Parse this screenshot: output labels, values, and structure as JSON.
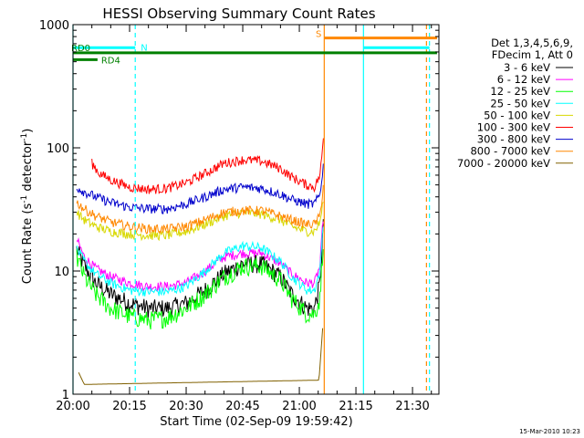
{
  "chart_data": {
    "type": "line",
    "title": "HESSI Observing Summary Count Rates",
    "xlabel": "Start Time (02-Sep-09 19:59:42)",
    "ylabel_main": "Count Rate (s",
    "ylabel_sup1": "-1",
    "ylabel_mid": " detector",
    "ylabel_sup2": "-1",
    "ylabel_end": ")",
    "y_scale": "log",
    "ylim": [
      1,
      1000
    ],
    "xlim_minutes": [
      0,
      97
    ],
    "x_ticks": [
      {
        "minute": 0,
        "label": "20:00"
      },
      {
        "minute": 15,
        "label": "20:15"
      },
      {
        "minute": 30,
        "label": "20:30"
      },
      {
        "minute": 45,
        "label": "20:45"
      },
      {
        "minute": 60,
        "label": "21:00"
      },
      {
        "minute": 75,
        "label": "21:15"
      },
      {
        "minute": 90,
        "label": "21:30"
      }
    ],
    "y_ticks": [
      {
        "value": 1,
        "label": "1"
      },
      {
        "value": 10,
        "label": "10"
      },
      {
        "value": 100,
        "label": "100"
      },
      {
        "value": 1000,
        "label": "1000"
      }
    ],
    "legend": {
      "header1": "Det 1,3,4,5,6,9,",
      "header2": "FDecim 1, Att 0",
      "placement": "right"
    },
    "series": [
      {
        "name": "3 - 6 keV",
        "color": "#000000",
        "x": [
          1,
          3,
          6,
          10,
          15,
          20,
          25,
          30,
          35,
          40,
          45,
          50,
          55,
          58,
          62,
          64,
          65.5,
          66.5
        ],
        "values": [
          15,
          11,
          8,
          6.5,
          5.5,
          5.0,
          5.0,
          5.5,
          7.0,
          9.5,
          11.5,
          11.5,
          9.0,
          6.5,
          5.0,
          5.0,
          8,
          28
        ]
      },
      {
        "name": "6 - 12 keV",
        "color": "#ff00ff",
        "x": [
          1,
          3,
          6,
          10,
          15,
          20,
          25,
          30,
          35,
          40,
          45,
          50,
          55,
          58,
          62,
          64,
          65.5,
          66.5
        ],
        "values": [
          18,
          13,
          10.5,
          9.0,
          8.0,
          7.5,
          7.5,
          8.0,
          10.0,
          13.0,
          14.0,
          14.0,
          11.5,
          9.5,
          8.0,
          8.0,
          11,
          33
        ]
      },
      {
        "name": "12 - 25 keV",
        "color": "#00ff00",
        "x": [
          1,
          3,
          6,
          10,
          15,
          20,
          25,
          30,
          35,
          40,
          45,
          50,
          55,
          58,
          62,
          64,
          65.5,
          66.5
        ],
        "values": [
          13,
          9,
          6.5,
          5.0,
          4.3,
          4.0,
          4.2,
          5.0,
          6.5,
          9.0,
          11.0,
          11.0,
          8.5,
          6.0,
          4.5,
          4.5,
          6,
          22
        ]
      },
      {
        "name": "25 - 50 keV",
        "color": "#00ffff",
        "x": [
          1,
          3,
          6,
          10,
          15,
          20,
          25,
          30,
          35,
          40,
          45,
          50,
          55,
          58,
          62,
          64,
          65.5,
          66.5
        ],
        "values": [
          15,
          12,
          9.5,
          8.0,
          7.0,
          6.8,
          6.8,
          7.5,
          10.0,
          14.0,
          16.0,
          15.5,
          12.0,
          9.0,
          7.0,
          7.0,
          10,
          30
        ]
      },
      {
        "name": "50 - 100 keV",
        "color": "#d8d800",
        "x": [
          1,
          3,
          6,
          10,
          15,
          20,
          25,
          30,
          35,
          40,
          45,
          50,
          55,
          58,
          62,
          64,
          65.5,
          66.5
        ],
        "values": [
          30,
          26,
          23,
          21,
          20,
          19.5,
          19.5,
          21,
          24,
          28,
          30,
          29,
          26,
          23,
          21,
          21,
          25,
          40
        ]
      },
      {
        "name": "100 - 300 keV",
        "color": "#ff0000",
        "x": [
          5,
          7,
          10,
          15,
          20,
          25,
          30,
          35,
          40,
          45,
          50,
          55,
          58,
          62,
          64,
          65.5,
          66.5
        ],
        "values": [
          75,
          62,
          55,
          48,
          46,
          47,
          52,
          62,
          75,
          80,
          78,
          68,
          58,
          50,
          48,
          60,
          130
        ]
      },
      {
        "name": "300 - 800 keV",
        "color": "#0000cc",
        "x": [
          1,
          3,
          6,
          10,
          15,
          20,
          25,
          30,
          35,
          40,
          45,
          50,
          55,
          58,
          62,
          64,
          65.5,
          66.5
        ],
        "values": [
          48,
          44,
          40,
          36,
          33,
          32,
          32,
          35,
          40,
          46,
          48,
          47,
          42,
          38,
          35,
          35,
          42,
          80
        ]
      },
      {
        "name": "800 - 7000 keV",
        "color": "#ff8800",
        "x": [
          1,
          3,
          6,
          10,
          15,
          20,
          25,
          30,
          35,
          40,
          45,
          50,
          55,
          58,
          62,
          64,
          65.5,
          66.5
        ],
        "values": [
          36,
          32,
          28,
          25,
          23,
          22,
          22,
          23,
          26,
          30,
          31,
          31,
          28,
          26,
          24,
          24,
          28,
          55
        ]
      },
      {
        "name": "7000 - 20000 keV",
        "color": "#806000",
        "x": [
          1.5,
          3,
          65.2,
          66.2
        ],
        "values": [
          1.5,
          1.2,
          1.3,
          3.5
        ]
      }
    ],
    "attenuator_state_lines": [
      {
        "label": "N",
        "color": "#00ffff",
        "y_level": 650,
        "x_start": 0,
        "x_end": 16.5
      },
      {
        "label": "RD0",
        "color": "#008000",
        "y_level": 590,
        "x_start": 0,
        "x_end": 96.5
      },
      {
        "label": "RD4",
        "color": "#008000",
        "y_level": 520,
        "x_start": 0,
        "x_end": 6.5
      },
      {
        "label": "S",
        "color": "#ff8800",
        "y_level": 780,
        "x_start": 66.6,
        "x_end": 96.5
      },
      {
        "label": "",
        "color": "#00ffff",
        "y_level": 650,
        "x_start": 77,
        "x_end": 94.5
      }
    ],
    "vertical_markers": [
      {
        "x": 0,
        "color": "#00ffff",
        "style": "solid"
      },
      {
        "x": 16.5,
        "color": "#00ffff",
        "style": "dashed"
      },
      {
        "x": 66.6,
        "color": "#ff8800",
        "style": "solid"
      },
      {
        "x": 77,
        "color": "#00ffff",
        "style": "solid"
      },
      {
        "x": 93.7,
        "color": "#ff8800",
        "style": "dashed"
      },
      {
        "x": 94.5,
        "color": "#00ffff",
        "style": "dashed"
      }
    ],
    "footer_date": "15-Mar-2010 10:23"
  }
}
